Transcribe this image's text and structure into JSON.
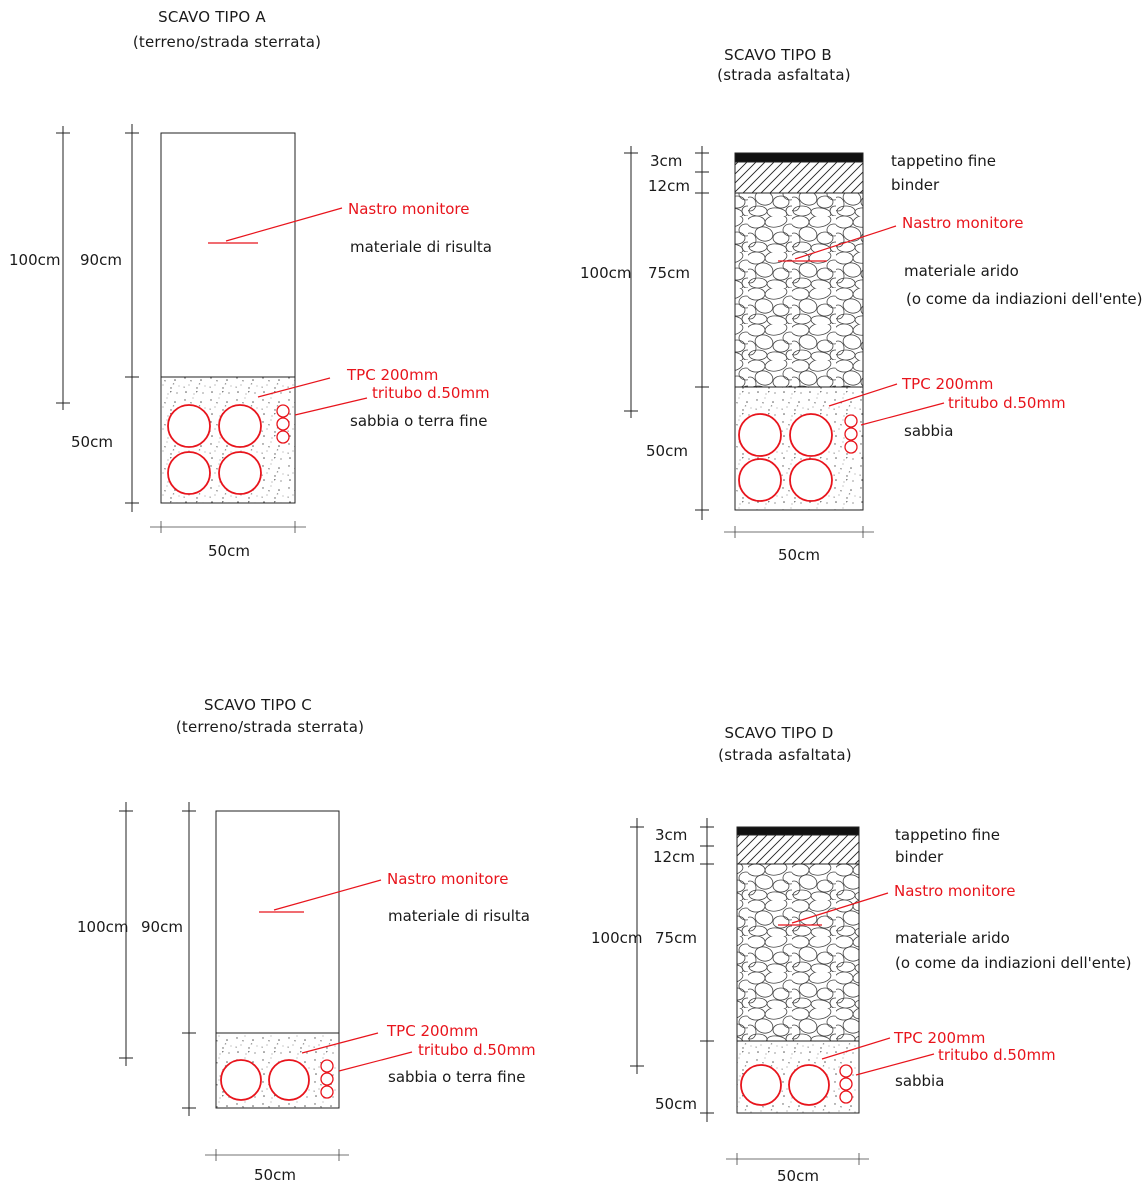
{
  "sections": {
    "a": {
      "title": "SCAVO TIPO A",
      "subtitle": "(terreno/strada sterrata)",
      "dim_total": "100cm",
      "dim_upper": "90cm",
      "dim_lower": "50cm",
      "dim_width": "50cm",
      "nastro": "Nastro monitore",
      "upper_material": "materiale di risulta",
      "tpc": "TPC 200mm",
      "tritubo": "tritubo d.50mm",
      "lower_material": "sabbia o terra fine"
    },
    "b": {
      "title": "SCAVO TIPO B",
      "subtitle": "(strada asfaltata)",
      "dim_3": "3cm",
      "dim_12": "12cm",
      "dim_total": "100cm",
      "dim_upper": "75cm",
      "dim_lower": "50cm",
      "dim_width": "50cm",
      "tappetino": "tappetino fine",
      "binder": "binder",
      "nastro": "Nastro monitore",
      "upper_material": "materiale arido",
      "upper_note": "(o come da indiazioni dell'ente)",
      "tpc": "TPC 200mm",
      "tritubo": "tritubo d.50mm",
      "lower_material": "sabbia"
    },
    "c": {
      "title": "SCAVO TIPO C",
      "subtitle": "(terreno/strada sterrata)",
      "dim_total": "100cm",
      "dim_upper": "90cm",
      "dim_width": "50cm",
      "nastro": "Nastro monitore",
      "upper_material": "materiale di risulta",
      "tpc": "TPC 200mm",
      "tritubo": "tritubo d.50mm",
      "lower_material": "sabbia o terra fine"
    },
    "d": {
      "title": "SCAVO TIPO D",
      "subtitle": "(strada asfaltata)",
      "dim_3": "3cm",
      "dim_12": "12cm",
      "dim_total": "100cm",
      "dim_upper": "75cm",
      "dim_lower": "50cm",
      "dim_width": "50cm",
      "tappetino": "tappetino fine",
      "binder": "binder",
      "nastro": "Nastro monitore",
      "upper_material": "materiale arido",
      "upper_note": "(o come da indiazioni dell'ente)",
      "tpc": "TPC 200mm",
      "tritubo": "tritubo d.50mm",
      "lower_material": "sabbia"
    }
  },
  "colors": {
    "annotation": "#e8141c",
    "line": "#222222",
    "asphalt": "#111111"
  }
}
